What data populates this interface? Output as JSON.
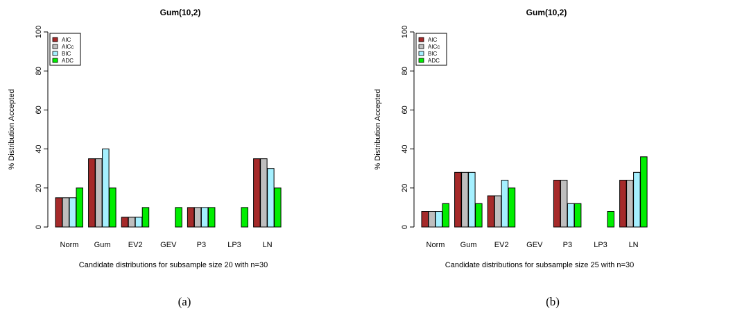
{
  "chart_data": [
    {
      "type": "bar",
      "title": "Gum(10,2)",
      "xlabel": "Candidate distributions for subsample size 20 with n=30",
      "ylabel": "% Distribution Accepted",
      "caption": "(a)",
      "categories": [
        "Norm",
        "Gum",
        "EV2",
        "GEV",
        "P3",
        "LP3",
        "LN"
      ],
      "ylim": [
        0,
        100
      ],
      "yticks": [
        "0",
        "20",
        "40",
        "60",
        "80",
        "100"
      ],
      "legend_position": "top-left",
      "series": [
        {
          "name": "AIC",
          "color": "#a52a2a",
          "values": [
            15,
            35,
            5,
            0,
            10,
            0,
            35
          ]
        },
        {
          "name": "AICc",
          "color": "#bebebe",
          "values": [
            15,
            35,
            5,
            0,
            10,
            0,
            35
          ]
        },
        {
          "name": "BIC",
          "color": "#a5f0ff",
          "values": [
            15,
            40,
            5,
            0,
            10,
            0,
            30
          ]
        },
        {
          "name": "ADC",
          "color": "#00ee00",
          "values": [
            20,
            20,
            10,
            10,
            10,
            10,
            20
          ]
        }
      ]
    },
    {
      "type": "bar",
      "title": "Gum(10,2)",
      "xlabel": "Candidate distributions for subsample size 25 with n=30",
      "ylabel": "% Distribution Accepted",
      "caption": "(b)",
      "categories": [
        "Norm",
        "Gum",
        "EV2",
        "GEV",
        "P3",
        "LP3",
        "LN"
      ],
      "ylim": [
        0,
        100
      ],
      "yticks": [
        "0",
        "20",
        "40",
        "60",
        "80",
        "100"
      ],
      "legend_position": "top-left",
      "series": [
        {
          "name": "AIC",
          "color": "#a52a2a",
          "values": [
            8,
            28,
            16,
            0,
            24,
            0,
            24
          ]
        },
        {
          "name": "AICc",
          "color": "#bebebe",
          "values": [
            8,
            28,
            16,
            0,
            24,
            0,
            24
          ]
        },
        {
          "name": "BIC",
          "color": "#a5f0ff",
          "values": [
            8,
            28,
            24,
            0,
            12,
            0,
            28
          ]
        },
        {
          "name": "ADC",
          "color": "#00ee00",
          "values": [
            12,
            12,
            20,
            0,
            12,
            8,
            36
          ]
        }
      ]
    }
  ]
}
